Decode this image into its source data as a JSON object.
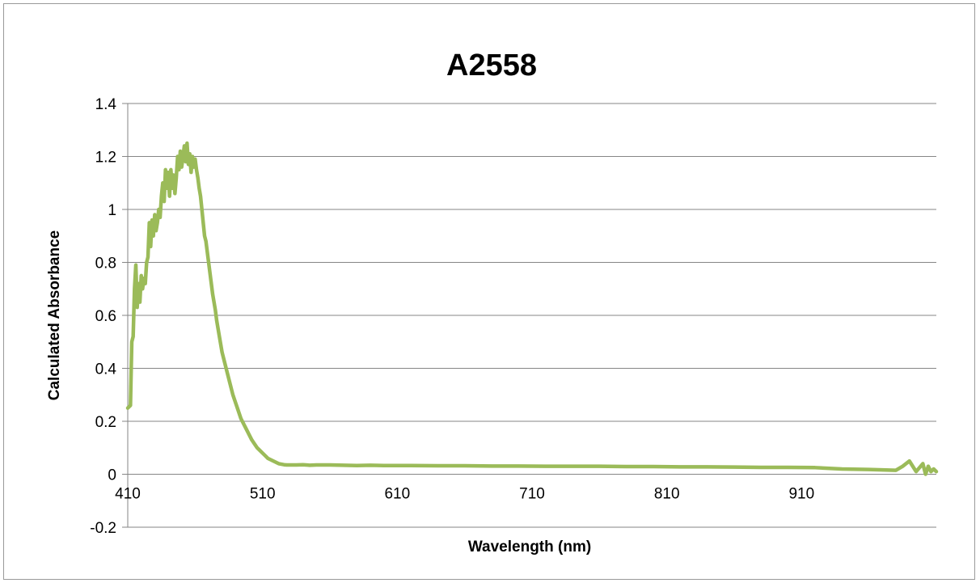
{
  "chart_data": {
    "type": "line",
    "title": "A2558",
    "xlabel": "Wavelength (nm)",
    "ylabel": "Calculated Absorbance",
    "xlim": [
      410,
      1010
    ],
    "ylim": [
      -0.2,
      1.4
    ],
    "x_ticks": [
      "410",
      "510",
      "610",
      "710",
      "810",
      "910"
    ],
    "y_ticks": [
      "1.4",
      "1.2",
      "1",
      "0.8",
      "0.6",
      "0.4",
      "0.2",
      "0",
      "-0.2"
    ],
    "grid": "horizontal",
    "legend": "none",
    "series": [
      {
        "color": "#9bbb59",
        "x": [
          410,
          412,
          413,
          414,
          415,
          416,
          417,
          418,
          419,
          420,
          421,
          422,
          423,
          424,
          425,
          426,
          427,
          428,
          429,
          430,
          431,
          432,
          433,
          434,
          435,
          436,
          437,
          438,
          439,
          440,
          441,
          442,
          443,
          444,
          445,
          446,
          447,
          448,
          449,
          450,
          451,
          452,
          453,
          454,
          455,
          456,
          457,
          458,
          459,
          460,
          461,
          462,
          463,
          464,
          465,
          466,
          467,
          468,
          469,
          470,
          471,
          472,
          473,
          474,
          475,
          476,
          477,
          478,
          479,
          480,
          482,
          484,
          486,
          488,
          490,
          492,
          494,
          496,
          498,
          500,
          502,
          504,
          506,
          508,
          510,
          512,
          514,
          516,
          518,
          520,
          522,
          524,
          526,
          528,
          530,
          535,
          540,
          545,
          550,
          560,
          570,
          580,
          590,
          600,
          620,
          640,
          660,
          680,
          700,
          720,
          740,
          760,
          780,
          800,
          820,
          840,
          860,
          880,
          900,
          920,
          940,
          960,
          980,
          985,
          990,
          995,
          1000,
          1002,
          1004,
          1006,
          1008,
          1010
        ],
        "y": [
          0.25,
          0.26,
          0.5,
          0.52,
          0.7,
          0.79,
          0.63,
          0.72,
          0.65,
          0.75,
          0.7,
          0.74,
          0.72,
          0.8,
          0.82,
          0.95,
          0.86,
          0.96,
          0.9,
          0.98,
          0.92,
          0.95,
          1.0,
          0.97,
          1.05,
          1.1,
          1.03,
          1.15,
          1.08,
          1.14,
          1.05,
          1.15,
          1.08,
          1.13,
          1.06,
          1.12,
          1.2,
          1.15,
          1.22,
          1.16,
          1.2,
          1.24,
          1.18,
          1.25,
          1.17,
          1.21,
          1.14,
          1.2,
          1.16,
          1.19,
          1.15,
          1.12,
          1.08,
          1.05,
          1.0,
          0.95,
          0.9,
          0.88,
          0.84,
          0.8,
          0.76,
          0.72,
          0.68,
          0.65,
          0.62,
          0.58,
          0.55,
          0.52,
          0.49,
          0.46,
          0.42,
          0.38,
          0.34,
          0.3,
          0.27,
          0.24,
          0.21,
          0.19,
          0.17,
          0.15,
          0.13,
          0.115,
          0.1,
          0.09,
          0.08,
          0.07,
          0.06,
          0.055,
          0.05,
          0.045,
          0.04,
          0.038,
          0.036,
          0.035,
          0.035,
          0.035,
          0.036,
          0.034,
          0.035,
          0.035,
          0.034,
          0.033,
          0.034,
          0.033,
          0.033,
          0.032,
          0.032,
          0.031,
          0.031,
          0.03,
          0.03,
          0.03,
          0.029,
          0.029,
          0.028,
          0.028,
          0.027,
          0.026,
          0.026,
          0.025,
          0.02,
          0.018,
          0.015,
          0.03,
          0.05,
          0.01,
          0.04,
          0.0,
          0.03,
          0.01,
          0.02,
          0.01
        ]
      }
    ]
  }
}
